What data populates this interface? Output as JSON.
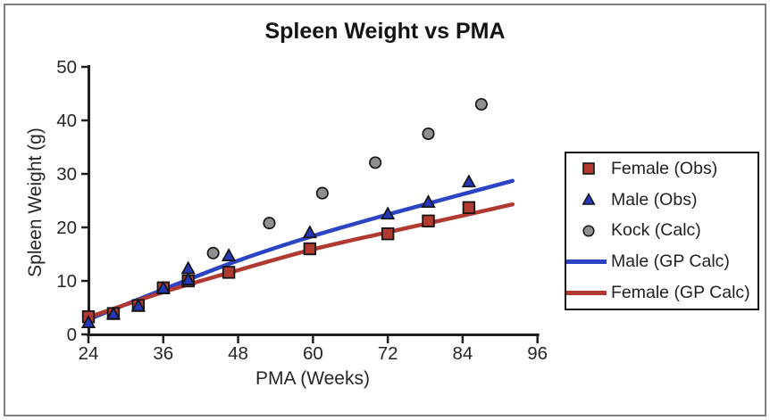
{
  "chart_data": {
    "type": "scatter",
    "title": "Spleen Weight vs PMA",
    "xlabel": "PMA (Weeks)",
    "ylabel": "Spleen Weight (g)",
    "xlim": [
      24,
      96
    ],
    "ylim": [
      0,
      50
    ],
    "x_ticks": [
      24,
      36,
      48,
      60,
      72,
      84,
      96
    ],
    "y_ticks": [
      0,
      10,
      20,
      30,
      40,
      50
    ],
    "grid": false,
    "legend_position": "right",
    "series": [
      {
        "name": "Female (Obs)",
        "type": "scatter",
        "marker": "square",
        "color": "#b23b31",
        "points": [
          [
            24,
            3.3
          ],
          [
            28,
            3.9
          ],
          [
            32,
            5.4
          ],
          [
            36,
            8.7
          ],
          [
            40,
            10.0
          ],
          [
            46.5,
            11.6
          ],
          [
            59.5,
            16.0
          ],
          [
            72,
            18.8
          ],
          [
            78.5,
            21.2
          ],
          [
            85,
            23.7
          ]
        ]
      },
      {
        "name": "Male (Obs)",
        "type": "scatter",
        "marker": "triangle",
        "color": "#2438b8",
        "points": [
          [
            24,
            2.2
          ],
          [
            28,
            3.8
          ],
          [
            32,
            5.3
          ],
          [
            36,
            8.6
          ],
          [
            40,
            10.2
          ],
          [
            40,
            12.3
          ],
          [
            46.5,
            14.7
          ],
          [
            59.5,
            19.0
          ],
          [
            72,
            22.5
          ],
          [
            78.5,
            24.7
          ],
          [
            85,
            28.5
          ]
        ]
      },
      {
        "name": "Kock (Calc)",
        "type": "scatter",
        "marker": "circle",
        "color": "#8f8f8f",
        "points": [
          [
            44,
            15.2
          ],
          [
            53,
            20.8
          ],
          [
            61.5,
            26.4
          ],
          [
            70,
            32.1
          ],
          [
            78.5,
            37.5
          ],
          [
            87,
            43.0
          ]
        ]
      },
      {
        "name": "Male (GP Calc)",
        "type": "line",
        "marker": "line",
        "color": "#2a44c4",
        "points": [
          [
            24,
            2.8
          ],
          [
            36,
            8.4
          ],
          [
            48,
            13.8
          ],
          [
            60,
            18.4
          ],
          [
            72,
            22.4
          ],
          [
            84,
            26.2
          ],
          [
            92,
            28.7
          ]
        ]
      },
      {
        "name": "Female (GP Calc)",
        "type": "line",
        "marker": "line",
        "color": "#b03a31",
        "points": [
          [
            24,
            3.2
          ],
          [
            36,
            7.9
          ],
          [
            48,
            12.0
          ],
          [
            60,
            15.9
          ],
          [
            72,
            19.1
          ],
          [
            84,
            22.2
          ],
          [
            92,
            24.3
          ]
        ]
      }
    ]
  },
  "colors": {
    "axis": "#1e1e1e",
    "tick_text": "#26262a",
    "marker_edge": "#141414",
    "frame_border": "#7f7f7f",
    "legend_border": "#141414"
  }
}
